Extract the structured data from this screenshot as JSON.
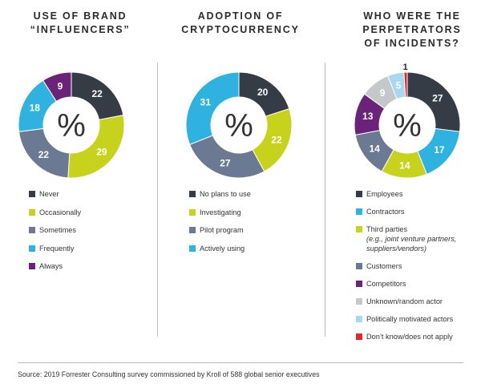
{
  "center_symbol": "%",
  "source": "Source: 2019 Forrester Consulting survey commissioned by Kroll of 588 global senior executives",
  "chart_data": [
    {
      "type": "pie",
      "title": "USE OF BRAND\n“INFLUENCERS”",
      "categories": [
        "Never",
        "Occasionally",
        "Sometimes",
        "Frequently",
        "Always"
      ],
      "values": [
        22,
        29,
        22,
        18,
        9
      ],
      "colors": [
        "#353c45",
        "#c7d21c",
        "#6b7a92",
        "#2fb2e0",
        "#6b2379"
      ]
    },
    {
      "type": "pie",
      "title": "ADOPTION OF\nCRYPTOCURRENCY",
      "categories": [
        "No plans to use",
        "Investigating",
        "Pilot program",
        "Actively using"
      ],
      "values": [
        20,
        22,
        27,
        31
      ],
      "colors": [
        "#353c45",
        "#c7d21c",
        "#6b7a92",
        "#2fb2e0"
      ]
    },
    {
      "type": "pie",
      "title": "WHO WERE THE\nPERPETRATORS\nOF INCIDENTS?",
      "categories": [
        "Employees",
        "Contractors",
        "Third parties",
        "Customers",
        "Competitors",
        "Unknown/random actor",
        "Politically motivated actors",
        "Don’t know/does not apply"
      ],
      "category_notes": [
        "",
        "",
        "(e.g., joint venture partners, suppliers/vendors)",
        "",
        "",
        "",
        "",
        ""
      ],
      "values": [
        27,
        17,
        14,
        14,
        13,
        9,
        5,
        1
      ],
      "colors": [
        "#353c45",
        "#2fb2e0",
        "#c7d21c",
        "#6b7a92",
        "#6b2379",
        "#c5c8ca",
        "#a8d8f0",
        "#e0272a"
      ]
    }
  ]
}
